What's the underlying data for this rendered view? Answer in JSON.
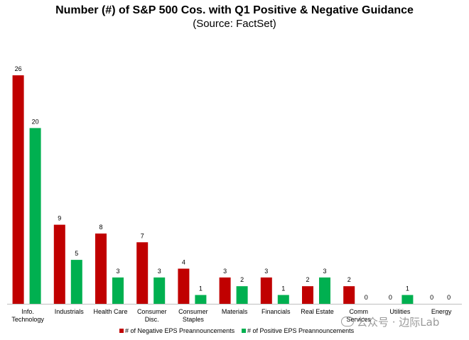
{
  "chart_data": {
    "type": "bar",
    "title": "Number (#) of S&P 500 Cos. with Q1 Positive & Negative Guidance",
    "subtitle": "(Source: FactSet)",
    "categories": [
      [
        "Info.",
        "Technology"
      ],
      [
        "Industrials"
      ],
      [
        "Health Care"
      ],
      [
        "Consumer",
        "Disc."
      ],
      [
        "Consumer",
        "Staples"
      ],
      [
        "Materials"
      ],
      [
        "Financials"
      ],
      [
        "Real Estate"
      ],
      [
        "Comm",
        "Services"
      ],
      [
        "Utilities"
      ],
      [
        "Energy"
      ]
    ],
    "series": [
      {
        "name": "# of Negative EPS Preannouncements",
        "color": "#c00000",
        "values": [
          26,
          9,
          8,
          7,
          4,
          3,
          3,
          2,
          2,
          0,
          0
        ]
      },
      {
        "name": "# of Positive EPS Preannouncements",
        "color": "#00b050",
        "values": [
          20,
          5,
          3,
          3,
          1,
          2,
          1,
          3,
          0,
          1,
          0
        ]
      }
    ],
    "ylim": [
      0,
      27
    ],
    "legend_position": "bottom",
    "grid": false
  },
  "watermark": {
    "text": "公众号 · 边际Lab"
  }
}
